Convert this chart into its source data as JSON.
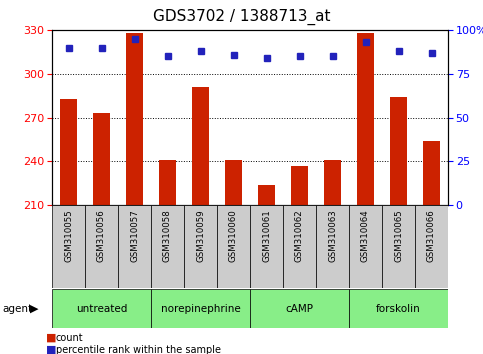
{
  "title": "GDS3702 / 1388713_at",
  "samples": [
    "GSM310055",
    "GSM310056",
    "GSM310057",
    "GSM310058",
    "GSM310059",
    "GSM310060",
    "GSM310061",
    "GSM310062",
    "GSM310063",
    "GSM310064",
    "GSM310065",
    "GSM310066"
  ],
  "counts": [
    283,
    273,
    328,
    241,
    291,
    241,
    224,
    237,
    241,
    328,
    284,
    254
  ],
  "percentiles": [
    90,
    90,
    95,
    85,
    88,
    86,
    84,
    85,
    85,
    93,
    88,
    87
  ],
  "ylim_left": [
    210,
    330
  ],
  "ylim_right": [
    0,
    100
  ],
  "yticks_left": [
    210,
    240,
    270,
    300,
    330
  ],
  "yticks_right": [
    0,
    25,
    50,
    75,
    100
  ],
  "bar_color": "#cc2200",
  "dot_color": "#2222bb",
  "groups": [
    {
      "label": "untreated",
      "start": 0,
      "end": 3
    },
    {
      "label": "norepinephrine",
      "start": 3,
      "end": 6
    },
    {
      "label": "cAMP",
      "start": 6,
      "end": 9
    },
    {
      "label": "forskolin",
      "start": 9,
      "end": 12
    }
  ],
  "group_color": "#88ee88",
  "sample_bg_color": "#cccccc",
  "legend_count_label": "count",
  "legend_pct_label": "percentile rank within the sample",
  "agent_label": "agent",
  "title_fontsize": 11,
  "tick_fontsize": 8,
  "bar_width": 0.5,
  "base_value": 210
}
